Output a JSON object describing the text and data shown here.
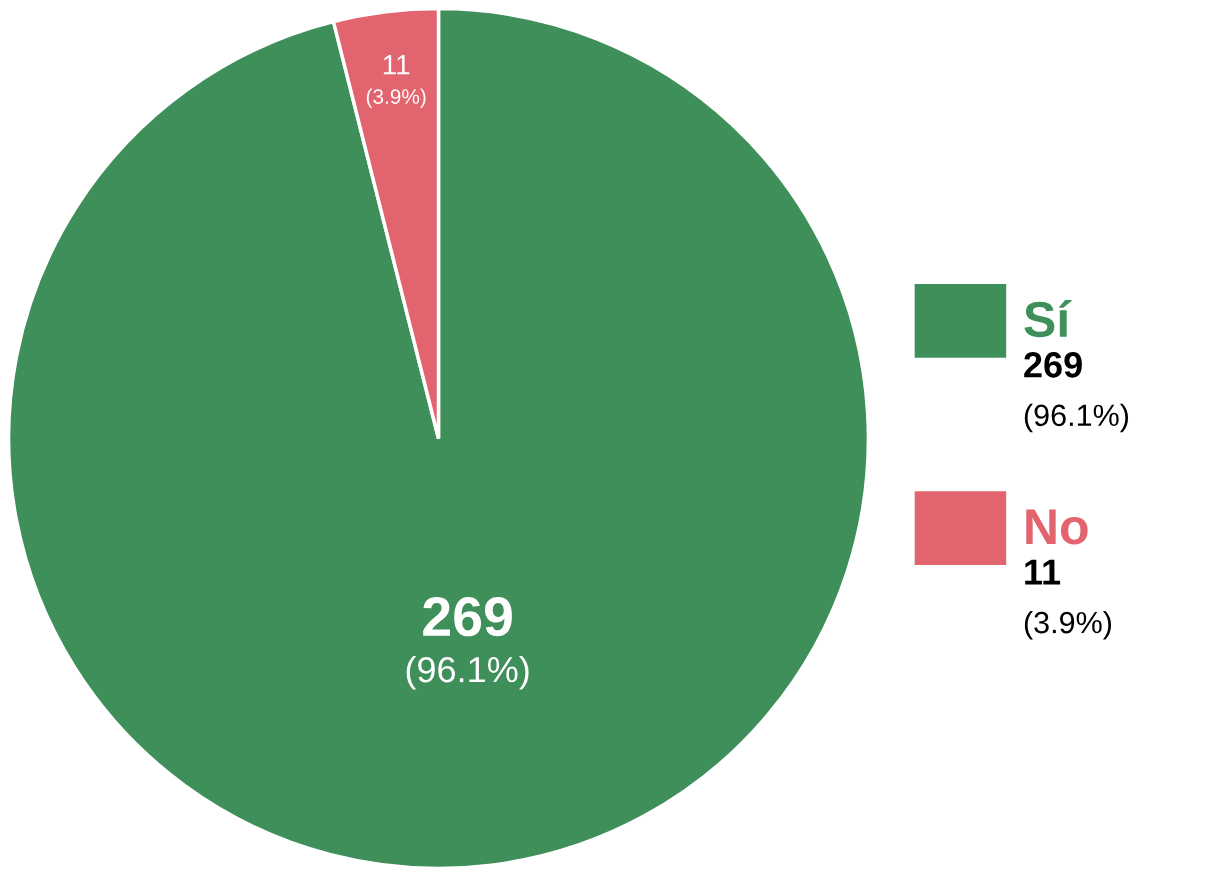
{
  "chart_data": {
    "type": "pie",
    "categories": [
      "Sí",
      "No"
    ],
    "values": [
      269,
      11
    ],
    "colors": [
      "#3f8f5a",
      "#e2646f"
    ],
    "value_labels": [
      "269\n(96.1%)",
      "11\n(3.9%)"
    ],
    "legend": "right"
  }
}
